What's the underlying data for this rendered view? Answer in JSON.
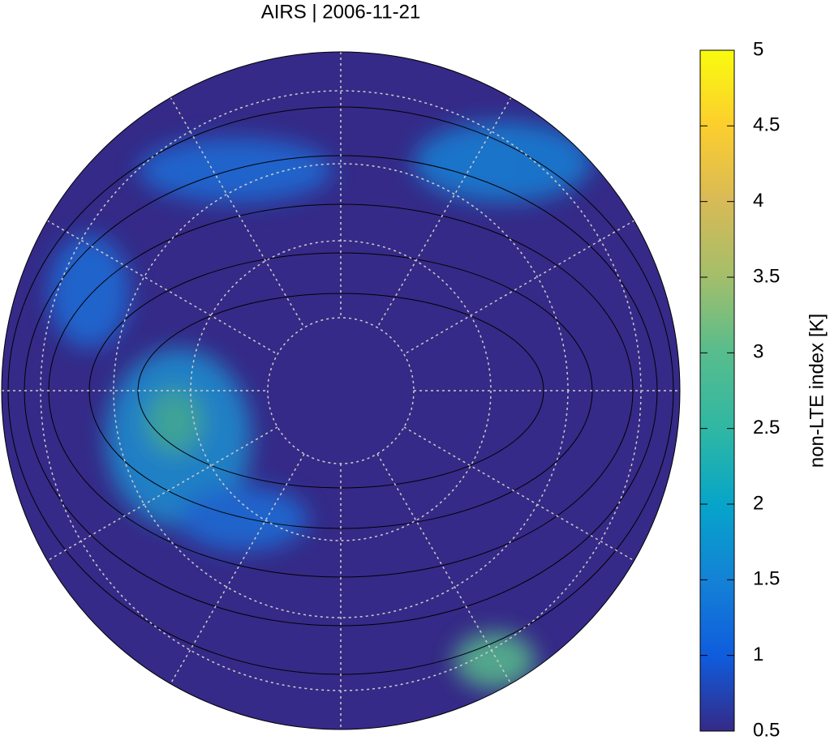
{
  "title": "AIRS | 2006-11-21",
  "colorbar": {
    "label": "non-LTE index [K]",
    "lim": [
      0.5,
      5
    ],
    "ticks": [
      0.5,
      1,
      1.5,
      2,
      2.5,
      3,
      3.5,
      4,
      4.5,
      5
    ]
  }
}
